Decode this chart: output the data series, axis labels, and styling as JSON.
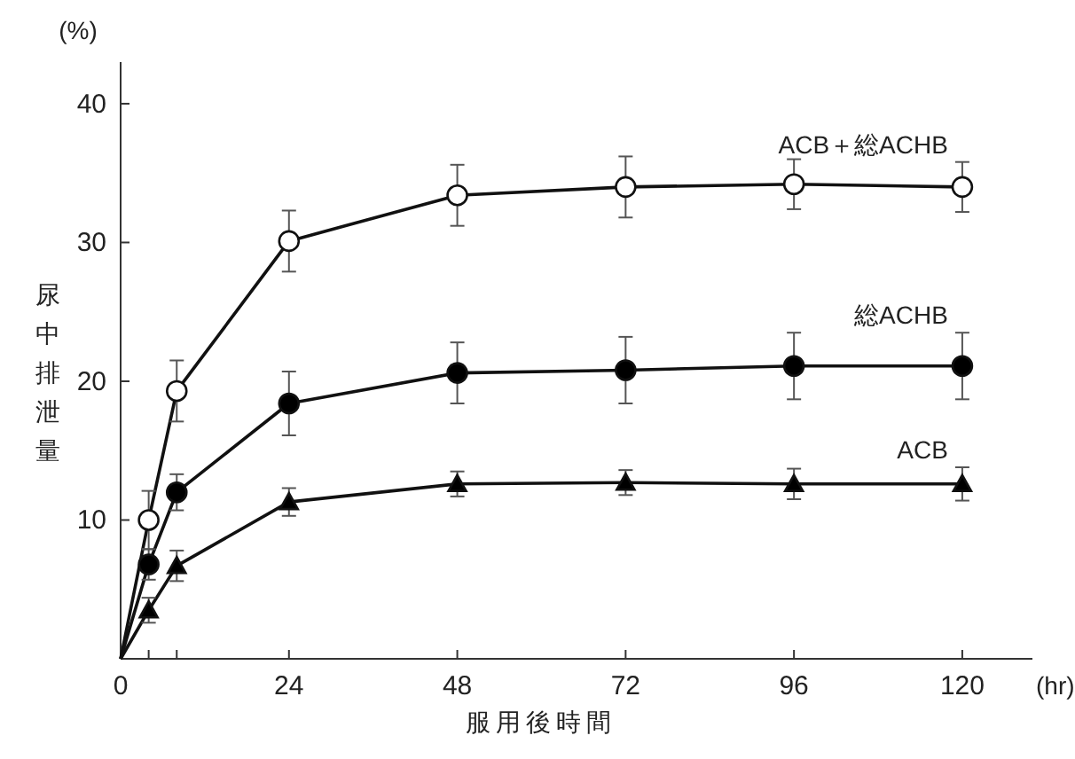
{
  "chart_data": {
    "type": "line",
    "ylabel": "尿中排泄量",
    "xlabel": "服用後時間",
    "annotations": [
      "(%)",
      "(hr)"
    ],
    "x": [
      0,
      4,
      8,
      24,
      48,
      72,
      96,
      120
    ],
    "series": [
      {
        "name": "ACB＋総ACHB",
        "color": "#ffffff",
        "marker": "circle",
        "values": [
          0,
          10.0,
          19.3,
          30.1,
          33.4,
          34.0,
          34.2,
          34.0
        ],
        "errors": [
          null,
          2.1,
          2.2,
          2.2,
          2.2,
          2.2,
          1.8,
          1.8
        ]
      },
      {
        "name": "総ACHB",
        "color": "#000000",
        "marker": "circle",
        "values": [
          0,
          6.8,
          12.0,
          18.4,
          20.6,
          20.8,
          21.1,
          21.1
        ],
        "errors": [
          null,
          1.1,
          1.3,
          2.3,
          2.2,
          2.4,
          2.4,
          2.4
        ]
      },
      {
        "name": "ACB",
        "color": "#000000",
        "marker": "triangle",
        "values": [
          0,
          3.5,
          6.7,
          11.3,
          12.6,
          12.7,
          12.6,
          12.6
        ],
        "errors": [
          null,
          0.9,
          1.1,
          1.0,
          0.9,
          0.9,
          1.1,
          1.2
        ]
      }
    ],
    "xlim": [
      0,
      130
    ],
    "ylim": [
      0,
      43
    ],
    "xticks": [
      0,
      {
        "value": 4,
        "label": null
      },
      {
        "value": 8,
        "label": null
      },
      24,
      48,
      72,
      96,
      120
    ],
    "yticks": [
      10,
      20,
      30,
      40
    ],
    "legend": false,
    "grid": false
  }
}
